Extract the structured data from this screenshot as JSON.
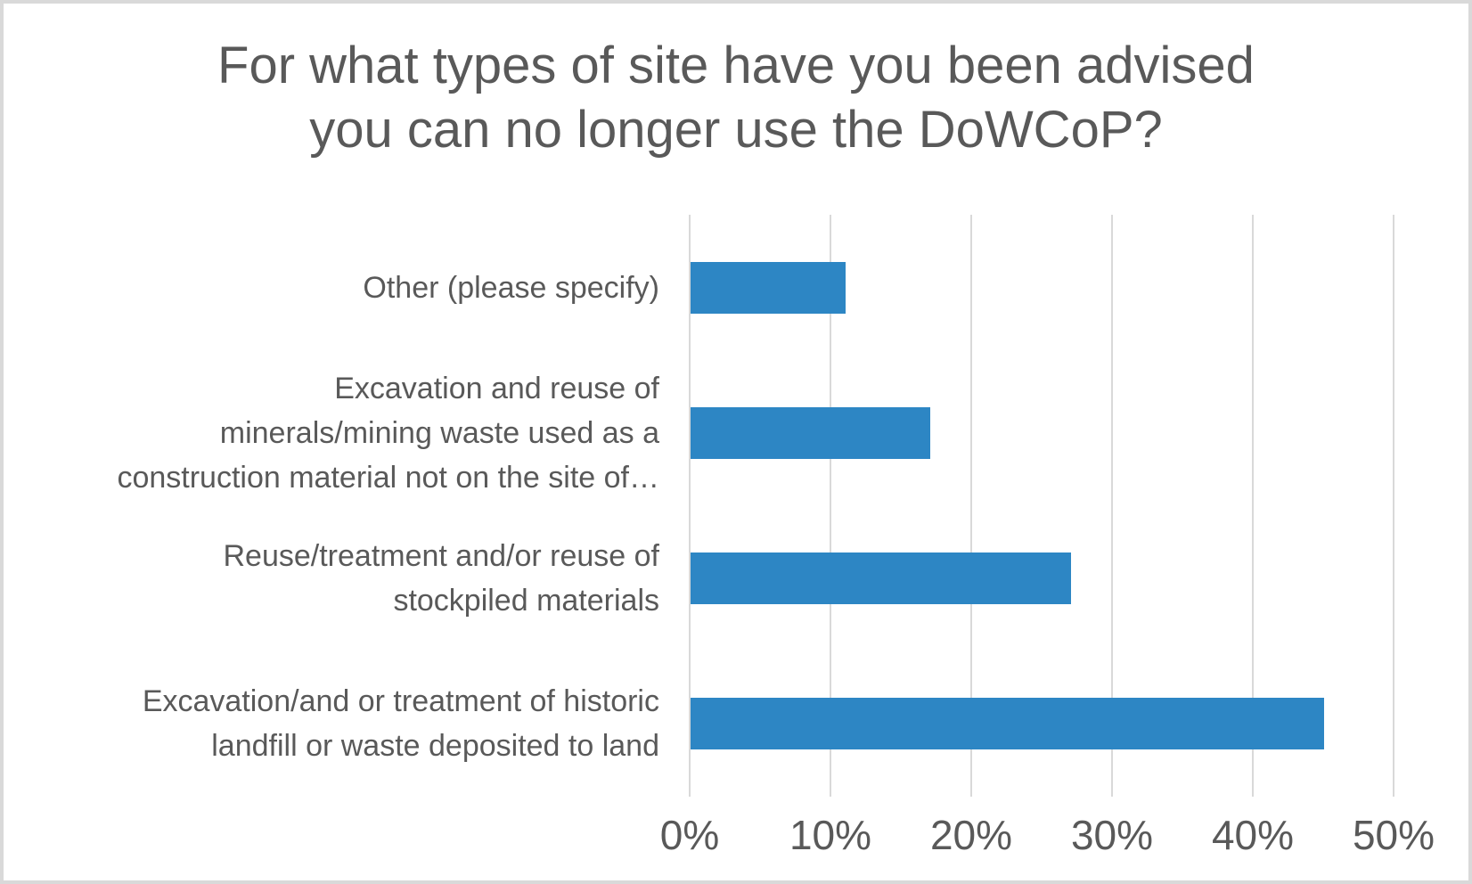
{
  "colors": {
    "bar": "#2D86C4",
    "gridline": "#D9D9D9",
    "text": "#595959",
    "frame": "#D9D9D9",
    "background": "#FFFFFF"
  },
  "chart_data": {
    "type": "bar",
    "orientation": "horizontal",
    "title": "For what types of site have you been advised you can no longer use the DoWCoP?",
    "title_lines": [
      "For what types of site have you been advised",
      "you can no longer use the DoWCoP?"
    ],
    "categories": [
      "Other (please specify)",
      "Excavation and reuse of minerals/mining waste used as a construction material not on the site of…",
      "Reuse/treatment and/or reuse of stockpiled materials",
      "Excavation/and or treatment of historic landfill or waste deposited to land"
    ],
    "category_lines": [
      [
        "Other (please specify)"
      ],
      [
        "Excavation and reuse of",
        "minerals/mining waste used as a",
        "construction material not on the site of…"
      ],
      [
        "Reuse/treatment and/or reuse of",
        "stockpiled materials"
      ],
      [
        "Excavation/and or treatment of historic",
        "landfill or waste deposited to land"
      ]
    ],
    "values": [
      11,
      17,
      27,
      45
    ],
    "value_unit": "%",
    "xlabel": "",
    "ylabel": "",
    "xlim": [
      0,
      50
    ],
    "x_ticks": [
      "0%",
      "10%",
      "20%",
      "30%",
      "40%",
      "50%"
    ],
    "x_tick_values": [
      0,
      10,
      20,
      30,
      40,
      50
    ],
    "grid": "vertical-only",
    "legend": "none"
  }
}
